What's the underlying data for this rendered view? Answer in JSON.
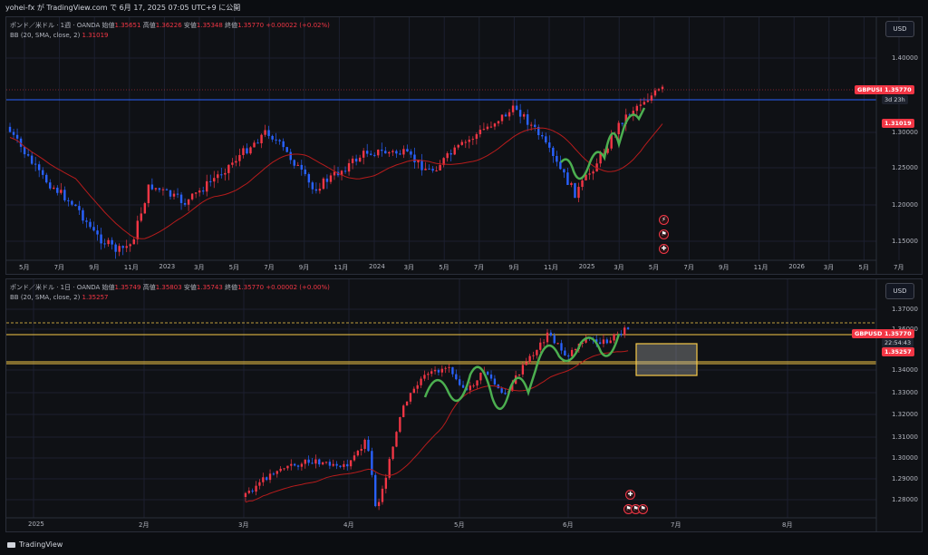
{
  "header": {
    "text": "yohei-fx が TradingView.com で 6月 17, 2025 07:05 UTC+9 に公開"
  },
  "panels": [
    {
      "legend": "ポンド／米ドル · 1週 · OANDA",
      "ohlc": [
        {
          "label": "始値",
          "value": "1.35651"
        },
        {
          "label": "高値",
          "value": "1.36226"
        },
        {
          "label": "安値",
          "value": "1.35348"
        },
        {
          "label": "終値",
          "value": "1.35770"
        }
      ],
      "change": "+0.00022 (+0.02%)",
      "bb_label": "BB (20, SMA, close, 2)",
      "bb_value": "1.31019",
      "currency": "USD",
      "y_ticks": [
        "1.40000",
        "1.30000",
        "1.25000",
        "1.20000",
        "1.15000"
      ],
      "x_ticks": [
        "5月",
        "7月",
        "9月",
        "11月",
        "2023",
        "3月",
        "5月",
        "7月",
        "9月",
        "11月",
        "2024",
        "3月",
        "5月",
        "7月",
        "9月",
        "11月",
        "2025",
        "3月",
        "5月",
        "7月",
        "9月",
        "11月",
        "2026",
        "3月",
        "5月",
        "7月"
      ],
      "symbol": "GBPUSD",
      "price": "1.35770",
      "countdown": "3d 23h",
      "bb_tag": "1.31019"
    },
    {
      "legend": "ポンド／米ドル · 1日 · OANDA",
      "ohlc": [
        {
          "label": "始値",
          "value": "1.35749"
        },
        {
          "label": "高値",
          "value": "1.35803"
        },
        {
          "label": "安値",
          "value": "1.35743"
        },
        {
          "label": "終値",
          "value": "1.35770"
        }
      ],
      "change": "+0.00002 (+0.00%)",
      "bb_label": "BB (20, SMA, close, 2)",
      "bb_value": "1.35257",
      "currency": "USD",
      "y_ticks": [
        "1.37000",
        "1.36000",
        "1.34000",
        "1.33000",
        "1.32000",
        "1.31000",
        "1.30000",
        "1.29000",
        "1.28000"
      ],
      "x_ticks": [
        "2025",
        "2月",
        "3月",
        "4月",
        "5月",
        "6月",
        "7月",
        "8月"
      ],
      "symbol": "GBPUSD",
      "price": "1.35770",
      "countdown": "22:54:43",
      "bb_tag": "1.35257"
    }
  ],
  "footer": {
    "brand": "TradingView"
  },
  "colors": {
    "up": "#f23645",
    "down": "#2962ff",
    "bb": "#b71c1c",
    "wave": "#4caf50",
    "bg": "#0f1115"
  }
}
